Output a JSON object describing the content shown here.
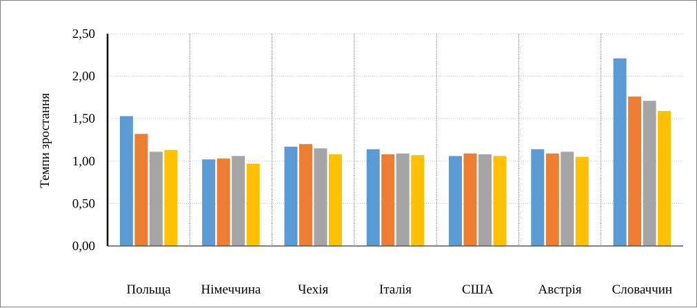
{
  "chart_data": {
    "type": "bar",
    "title": "",
    "xlabel": "",
    "ylabel": "Темпи зростання",
    "ylim": [
      0,
      2.5
    ],
    "yticks": [
      "0,00",
      "0,50",
      "1,00",
      "1,50",
      "2,00",
      "2,50"
    ],
    "grid": true,
    "legend": "none",
    "categories": [
      "Польща",
      "Німеччина",
      "Чехія",
      "Італія",
      "США",
      "Австрія",
      "Словаччин"
    ],
    "series": [
      {
        "color": "#5b9bd5",
        "values": [
          1.53,
          1.02,
          1.17,
          1.14,
          1.06,
          1.14,
          2.21
        ]
      },
      {
        "color": "#ed7d31",
        "values": [
          1.32,
          1.03,
          1.2,
          1.08,
          1.09,
          1.09,
          1.76
        ]
      },
      {
        "color": "#a5a5a5",
        "values": [
          1.11,
          1.06,
          1.15,
          1.09,
          1.08,
          1.11,
          1.71
        ]
      },
      {
        "color": "#ffc000",
        "values": [
          1.13,
          0.97,
          1.08,
          1.07,
          1.06,
          1.05,
          1.59
        ]
      }
    ]
  }
}
